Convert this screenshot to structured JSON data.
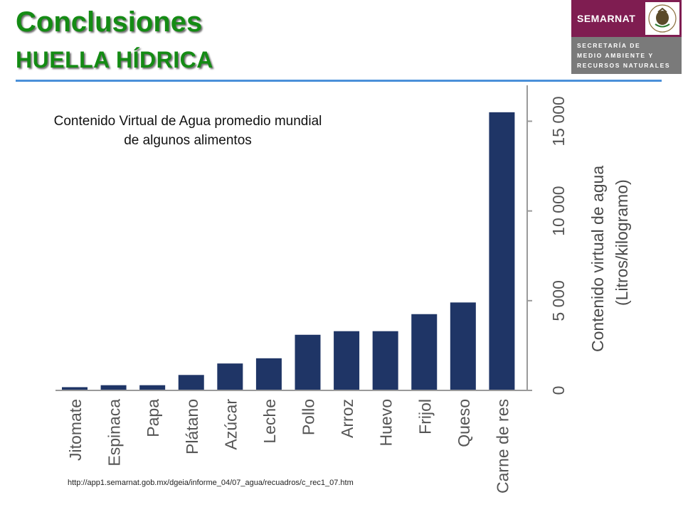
{
  "header": {
    "title": "Conclusiones",
    "subtitle": "HUELLA HÍDRICA"
  },
  "logo": {
    "name": "SEMARNAT",
    "lines": [
      "SECRETARÍA DE",
      "MEDIO AMBIENTE Y",
      "RECURSOS NATURALES"
    ],
    "seal_icon": "mexican-eagle-seal-icon"
  },
  "colors": {
    "title": "#148b14",
    "bar": "#1f3566",
    "rule": "#4a90d9",
    "logo_brand": "#7f1d51"
  },
  "chart_data": {
    "type": "bar",
    "title": "Contenido Virtual de Agua promedio mundial de algunos alimentos",
    "ylabel_line1": "Contenido virtual de agua",
    "ylabel_line2": "(Litros/kilogramo)",
    "categories": [
      "Jitomate",
      "Espinaca",
      "Papa",
      "Plátano",
      "Azúcar",
      "Leche",
      "Pollo",
      "Arroz",
      "Huevo",
      "Frijol",
      "Queso",
      "Carne de res"
    ],
    "values": [
      180,
      290,
      290,
      860,
      1500,
      1790,
      3100,
      3300,
      3300,
      4250,
      4900,
      15500
    ],
    "ylim": [
      0,
      17000
    ],
    "yticks": [
      0,
      5000,
      10000,
      15000
    ],
    "ytick_labels": [
      "0",
      "5 000",
      "10 000",
      "15 000"
    ],
    "y_axis_side": "right",
    "grid": false
  },
  "source_url": "http://app1.semarnat.gob.mx/dgeia/informe_04/07_agua/recuadros/c_rec1_07.htm"
}
